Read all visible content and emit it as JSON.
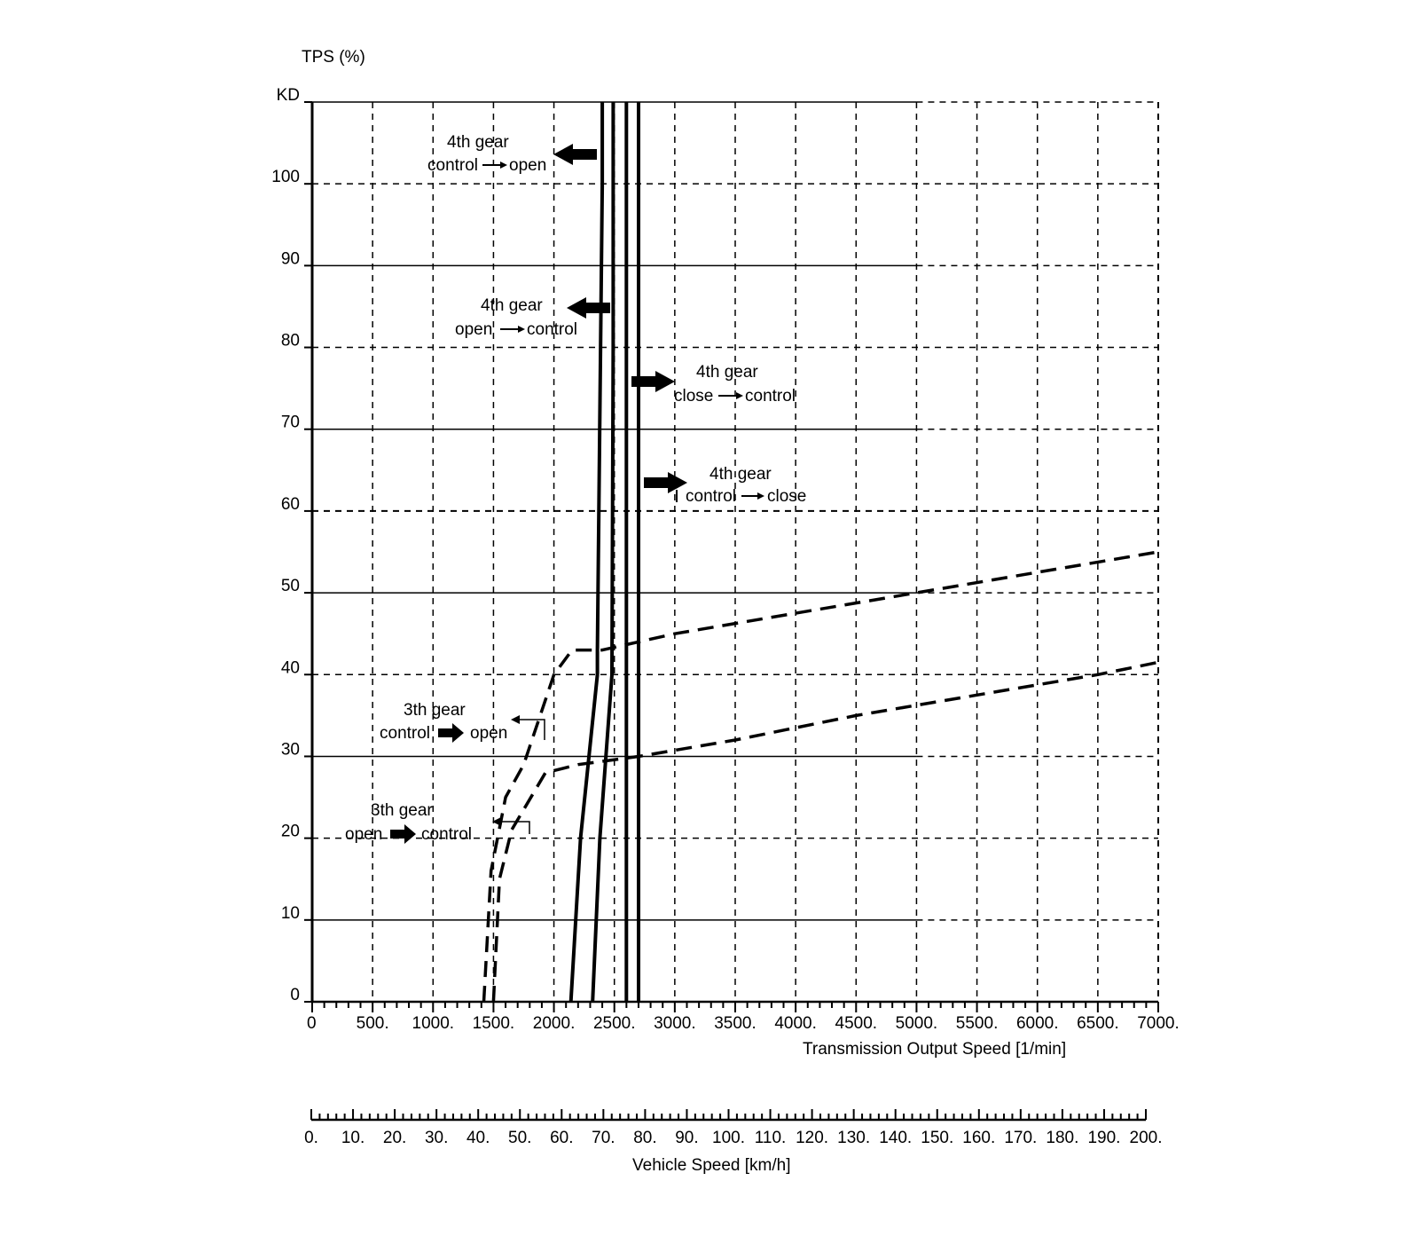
{
  "chart_data": {
    "type": "line",
    "title": "",
    "ylabel": "TPS (%)",
    "xlabel": "Transmission Output Speed [1/min]",
    "xlim": [
      0,
      7000
    ],
    "ylim": [
      0,
      110
    ],
    "grid": true,
    "y_ticks": [
      {
        "value": 0,
        "label": "0"
      },
      {
        "value": 10,
        "label": "10"
      },
      {
        "value": 20,
        "label": "20"
      },
      {
        "value": 30,
        "label": "30"
      },
      {
        "value": 40,
        "label": "40"
      },
      {
        "value": 50,
        "label": "50"
      },
      {
        "value": 60,
        "label": "60"
      },
      {
        "value": 70,
        "label": "70"
      },
      {
        "value": 80,
        "label": "80"
      },
      {
        "value": 90,
        "label": "90"
      },
      {
        "value": 100,
        "label": "100"
      },
      {
        "value": 110,
        "label": "KD"
      }
    ],
    "x_ticks": [
      {
        "value": 0,
        "label": "0"
      },
      {
        "value": 500,
        "label": "500."
      },
      {
        "value": 1000,
        "label": "1000."
      },
      {
        "value": 1500,
        "label": "1500."
      },
      {
        "value": 2000,
        "label": "2000."
      },
      {
        "value": 2500,
        "label": "2500."
      },
      {
        "value": 3000,
        "label": "3000."
      },
      {
        "value": 3500,
        "label": "3500."
      },
      {
        "value": 4000,
        "label": "4000."
      },
      {
        "value": 4500,
        "label": "4500."
      },
      {
        "value": 5000,
        "label": "5000."
      },
      {
        "value": 5500,
        "label": "5500."
      },
      {
        "value": 6000,
        "label": "6000."
      },
      {
        "value": 6500,
        "label": "6500."
      },
      {
        "value": 7000,
        "label": "7000."
      }
    ],
    "secondary_axis": {
      "label": "Vehicle Speed [km/h]",
      "range": [
        0,
        200
      ],
      "ticks": [
        "0.",
        "10.",
        "20.",
        "30.",
        "40.",
        "50.",
        "60.",
        "70.",
        "80.",
        "90.",
        "100.",
        "110.",
        "120.",
        "130.",
        "140.",
        "150.",
        "160.",
        "170.",
        "180.",
        "190.",
        "200."
      ]
    },
    "series": [
      {
        "name": "4th gear control→open",
        "style": "solid",
        "x": [
          2140,
          2220,
          2360,
          2360,
          2400,
          2400
        ],
        "y": [
          0,
          20,
          40,
          43,
          100,
          110
        ]
      },
      {
        "name": "4th gear open→control",
        "style": "solid",
        "x": [
          2320,
          2380,
          2480,
          2490,
          2490
        ],
        "y": [
          0,
          20,
          40,
          80,
          110
        ]
      },
      {
        "name": "4th gear close→control",
        "style": "solid",
        "x": [
          2600,
          2600
        ],
        "y": [
          0,
          110
        ]
      },
      {
        "name": "4th gear control→close",
        "style": "solid",
        "x": [
          2700,
          2700
        ],
        "y": [
          0,
          110
        ]
      },
      {
        "name": "3th gear control→open",
        "style": "dashed",
        "x": [
          1420,
          1480,
          1600,
          1750,
          2000,
          2150,
          2400,
          3000,
          4000,
          5000,
          6000,
          7000
        ],
        "y": [
          0,
          16,
          25,
          29,
          40,
          43,
          43,
          45,
          47.5,
          50,
          52.5,
          55
        ]
      },
      {
        "name": "3th gear open→control",
        "style": "dashed",
        "x": [
          1500,
          1550,
          1650,
          1930,
          2200,
          2700,
          3500,
          4500,
          5500,
          6500,
          7000
        ],
        "y": [
          0,
          15,
          21,
          28,
          29,
          30,
          32,
          35,
          37.5,
          40,
          41.5
        ]
      }
    ],
    "annotations": [
      {
        "id": "a4co",
        "lines": [
          "4th gear",
          "control",
          "open"
        ],
        "arrow": "left"
      },
      {
        "id": "a4oc",
        "lines": [
          "4th gear",
          "open",
          "control"
        ],
        "arrow": "left"
      },
      {
        "id": "a4cc",
        "lines": [
          "4th gear",
          "close",
          "control"
        ],
        "arrow": "right"
      },
      {
        "id": "a4ccl",
        "lines": [
          "4th gear",
          "control",
          "close"
        ],
        "arrow": "right"
      },
      {
        "id": "a3co",
        "lines": [
          "3th gear",
          "control",
          "open"
        ],
        "arrow": "left"
      },
      {
        "id": "a3oc",
        "lines": [
          "3th gear",
          "open",
          "control"
        ],
        "arrow": "left"
      }
    ]
  }
}
